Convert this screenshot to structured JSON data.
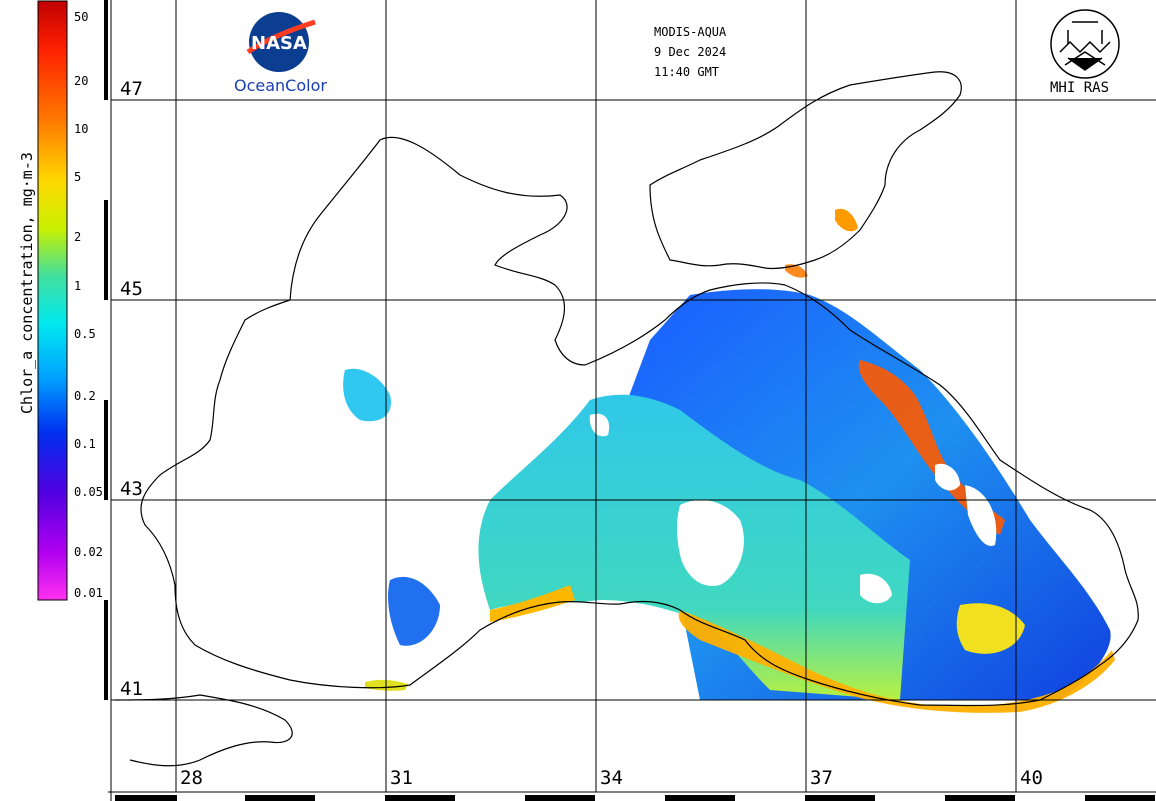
{
  "header": {
    "sensor": "MODIS-AQUA",
    "date": "9 Dec 2024",
    "time": "11:40 GMT"
  },
  "logos": {
    "nasa_wordmark": "NASA",
    "nasa_caption": "OceanColor",
    "mhi_caption": "MHI RAS"
  },
  "colorbar": {
    "title": "Chlor_a concentration, mg·m-3",
    "ticks": [
      "50",
      "20",
      "10",
      "5",
      "2",
      "1",
      "0.5",
      "0.2",
      "0.1",
      "0.05",
      "0.02",
      "0.01"
    ],
    "scale": "log",
    "colors_top_to_bottom": [
      "#c00000",
      "#ff2000",
      "#ff7a00",
      "#ffd800",
      "#c8f000",
      "#40e0a0",
      "#00e8f0",
      "#00a0ff",
      "#0030f0",
      "#5000e0",
      "#b000f0",
      "#ff30f0"
    ]
  },
  "axes": {
    "latitude_labels": [
      "47",
      "45",
      "43",
      "41"
    ],
    "longitude_labels": [
      "28",
      "31",
      "34",
      "37",
      "40"
    ]
  },
  "map": {
    "region": "Black Sea",
    "land_color": "#ffffff",
    "coast_color": "#000000",
    "grid_color": "#000000"
  }
}
